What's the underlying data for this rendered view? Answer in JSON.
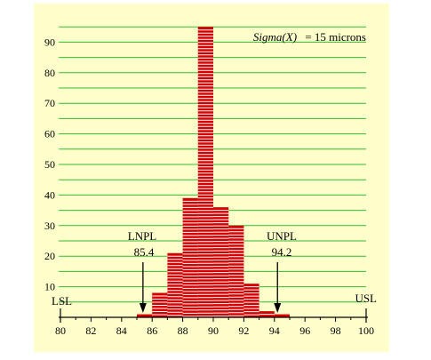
{
  "colors": {
    "background": "#ffffcc",
    "grid": "#33bb33",
    "bar_fill": "#d40000",
    "bar_stripe": "#ffffff",
    "axis": "#000000"
  },
  "annotations": {
    "sigma_prefix": "Sigma(X)",
    "sigma_suffix": "=  15 microns",
    "lsl": "LSL",
    "usl": "USL",
    "lnpl_label": "LNPL",
    "lnpl_value": "85.4",
    "unpl_label": "UNPL",
    "unpl_value": "94.2"
  },
  "chart_data": {
    "type": "bar",
    "title": "",
    "xlabel": "",
    "ylabel": "",
    "xlim": [
      80,
      100
    ],
    "ylim": [
      0,
      100
    ],
    "grid": true,
    "x_ticks": [
      80,
      82,
      84,
      86,
      88,
      90,
      92,
      94,
      96,
      98,
      100
    ],
    "y_ticks": [
      10,
      20,
      30,
      40,
      50,
      60,
      70,
      80,
      90
    ],
    "bin_width": 1,
    "bins": [
      {
        "start": 85,
        "value": 1
      },
      {
        "start": 86,
        "value": 8
      },
      {
        "start": 87,
        "value": 21
      },
      {
        "start": 88,
        "value": 39
      },
      {
        "start": 89,
        "value": 95
      },
      {
        "start": 90,
        "value": 36
      },
      {
        "start": 91,
        "value": 30
      },
      {
        "start": 92,
        "value": 11
      },
      {
        "start": 93,
        "value": 2
      },
      {
        "start": 94,
        "value": 1
      }
    ],
    "lnpl": 85.4,
    "unpl": 94.2,
    "lsl": 80,
    "usl": 100
  }
}
